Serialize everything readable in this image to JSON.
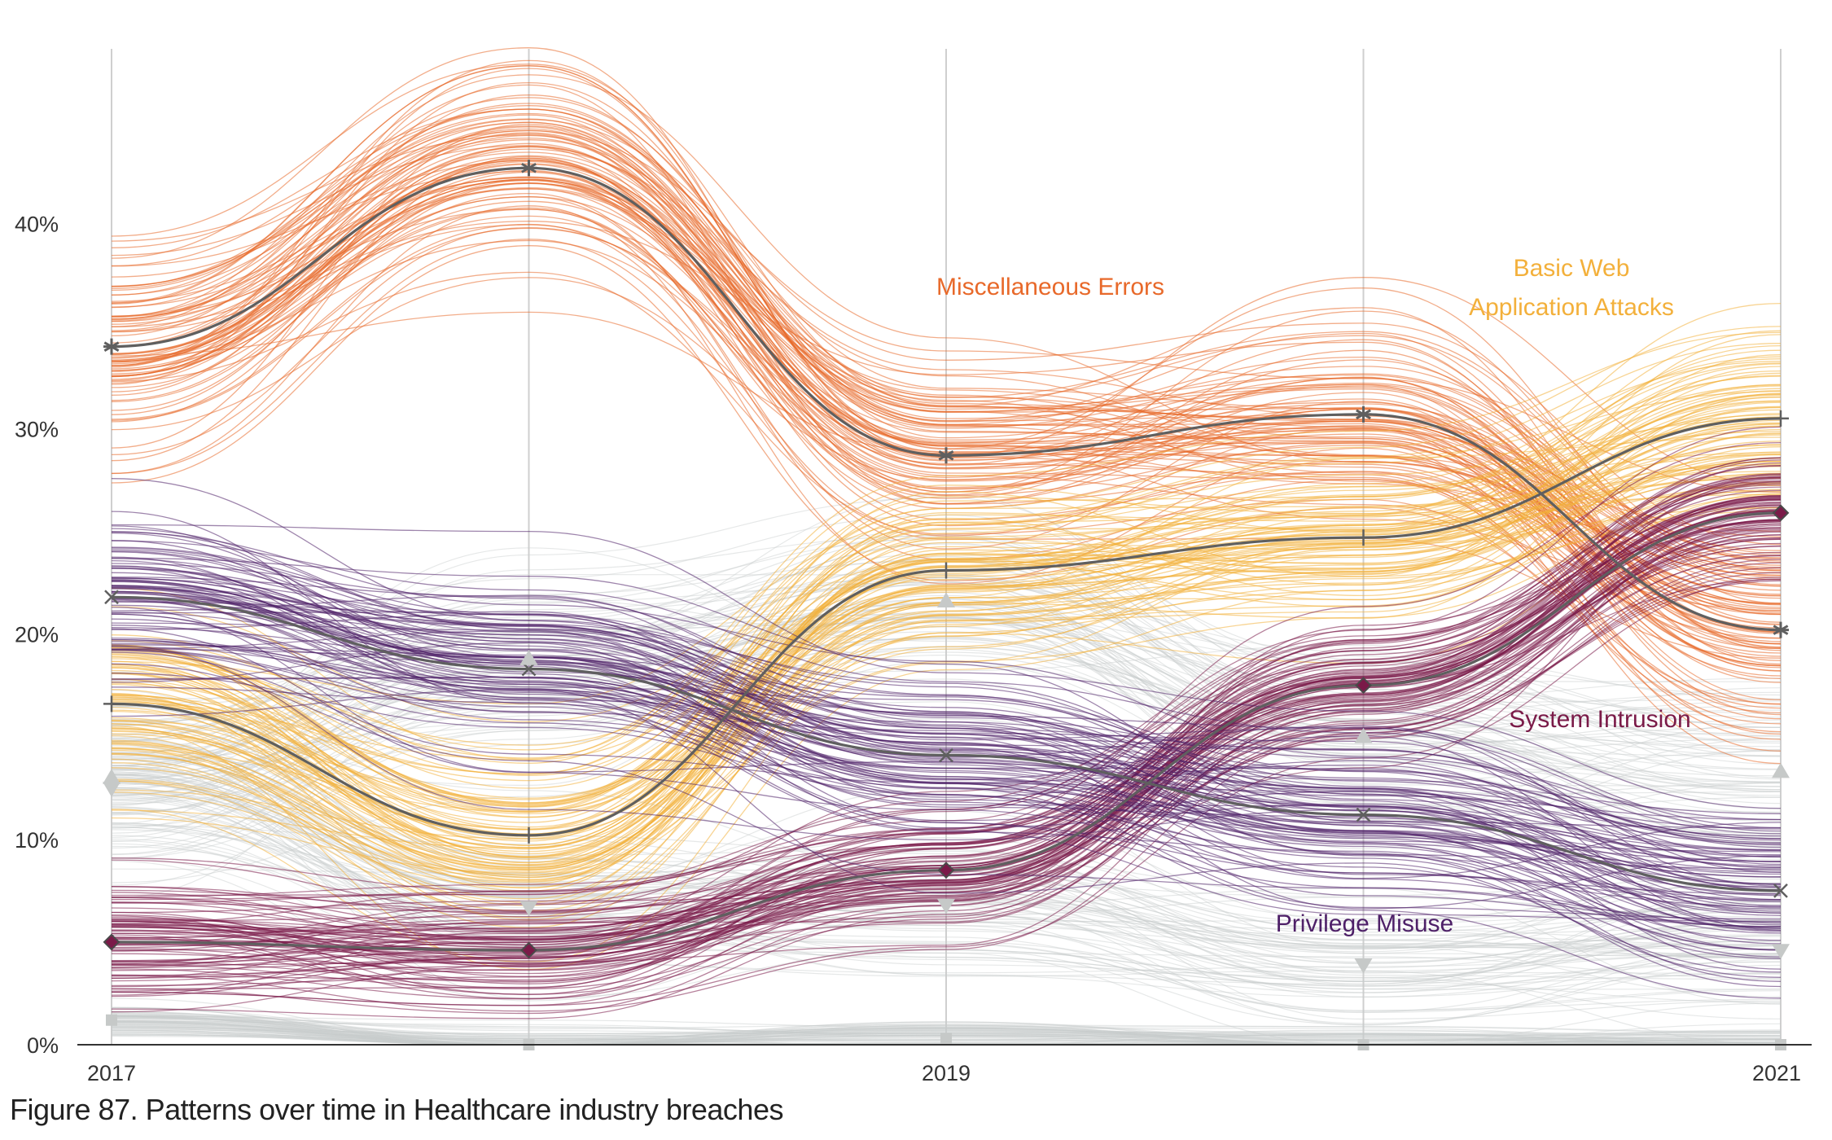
{
  "caption": "Figure 87. Patterns over time in Healthcare industry breaches",
  "chart_data": {
    "type": "line",
    "x": [
      2017,
      2018,
      2019,
      2020,
      2021
    ],
    "x_tick_labels": [
      "2017",
      "",
      "2019",
      "",
      "2021"
    ],
    "y_tick_labels": [
      "0%",
      "10%",
      "20%",
      "30%",
      "40%"
    ],
    "y_ticks": [
      0,
      10,
      20,
      30,
      40
    ],
    "ylim": [
      0,
      48.5
    ],
    "xlim": [
      2017,
      2021
    ],
    "grid": "vertical",
    "legend": "none (direct labels)",
    "uncertainty_bands": "many thin simulated lines around each highlighted series",
    "series": [
      {
        "name": "Miscellaneous Errors",
        "label": "Miscellaneous Errors",
        "values": [
          34.0,
          42.7,
          28.7,
          30.7,
          20.2
        ],
        "color": "#e8692a",
        "marker": "asterisk",
        "highlight": true,
        "spread": 3.2
      },
      {
        "name": "Basic Web Application Attacks",
        "label_lines": [
          "Basic Web",
          "Application Attacks"
        ],
        "values": [
          16.6,
          10.2,
          23.1,
          24.7,
          30.5
        ],
        "color": "#f3b03b",
        "marker": "plus",
        "highlight": true,
        "spread": 2.6
      },
      {
        "name": "System Intrusion",
        "label": "System Intrusion",
        "values": [
          5.0,
          4.6,
          8.5,
          17.5,
          25.9
        ],
        "color": "#7a1a48",
        "marker": "diamond",
        "highlight": true,
        "spread": 1.8
      },
      {
        "name": "Privilege Misuse",
        "label": "Privilege Misuse",
        "values": [
          21.8,
          18.3,
          14.1,
          11.2,
          7.5
        ],
        "color": "#4e2068",
        "marker": "x",
        "highlight": true,
        "spread": 2.5
      },
      {
        "values": [
          13.0,
          18.8,
          21.6,
          15.0,
          13.3
        ],
        "color": "#c8cccb",
        "marker": "triangle-up",
        "highlight": false,
        "spread": 3.0
      },
      {
        "values": [
          12.5,
          6.7,
          6.8,
          3.9,
          4.6
        ],
        "color": "#c8cccb",
        "marker": "triangle-down",
        "highlight": false,
        "spread": 2.2
      },
      {
        "values": [
          1.2,
          0.0,
          0.3,
          0.0,
          0.0
        ],
        "color": "#c8cccb",
        "marker": "square",
        "highlight": false,
        "spread": 0.6
      }
    ]
  }
}
